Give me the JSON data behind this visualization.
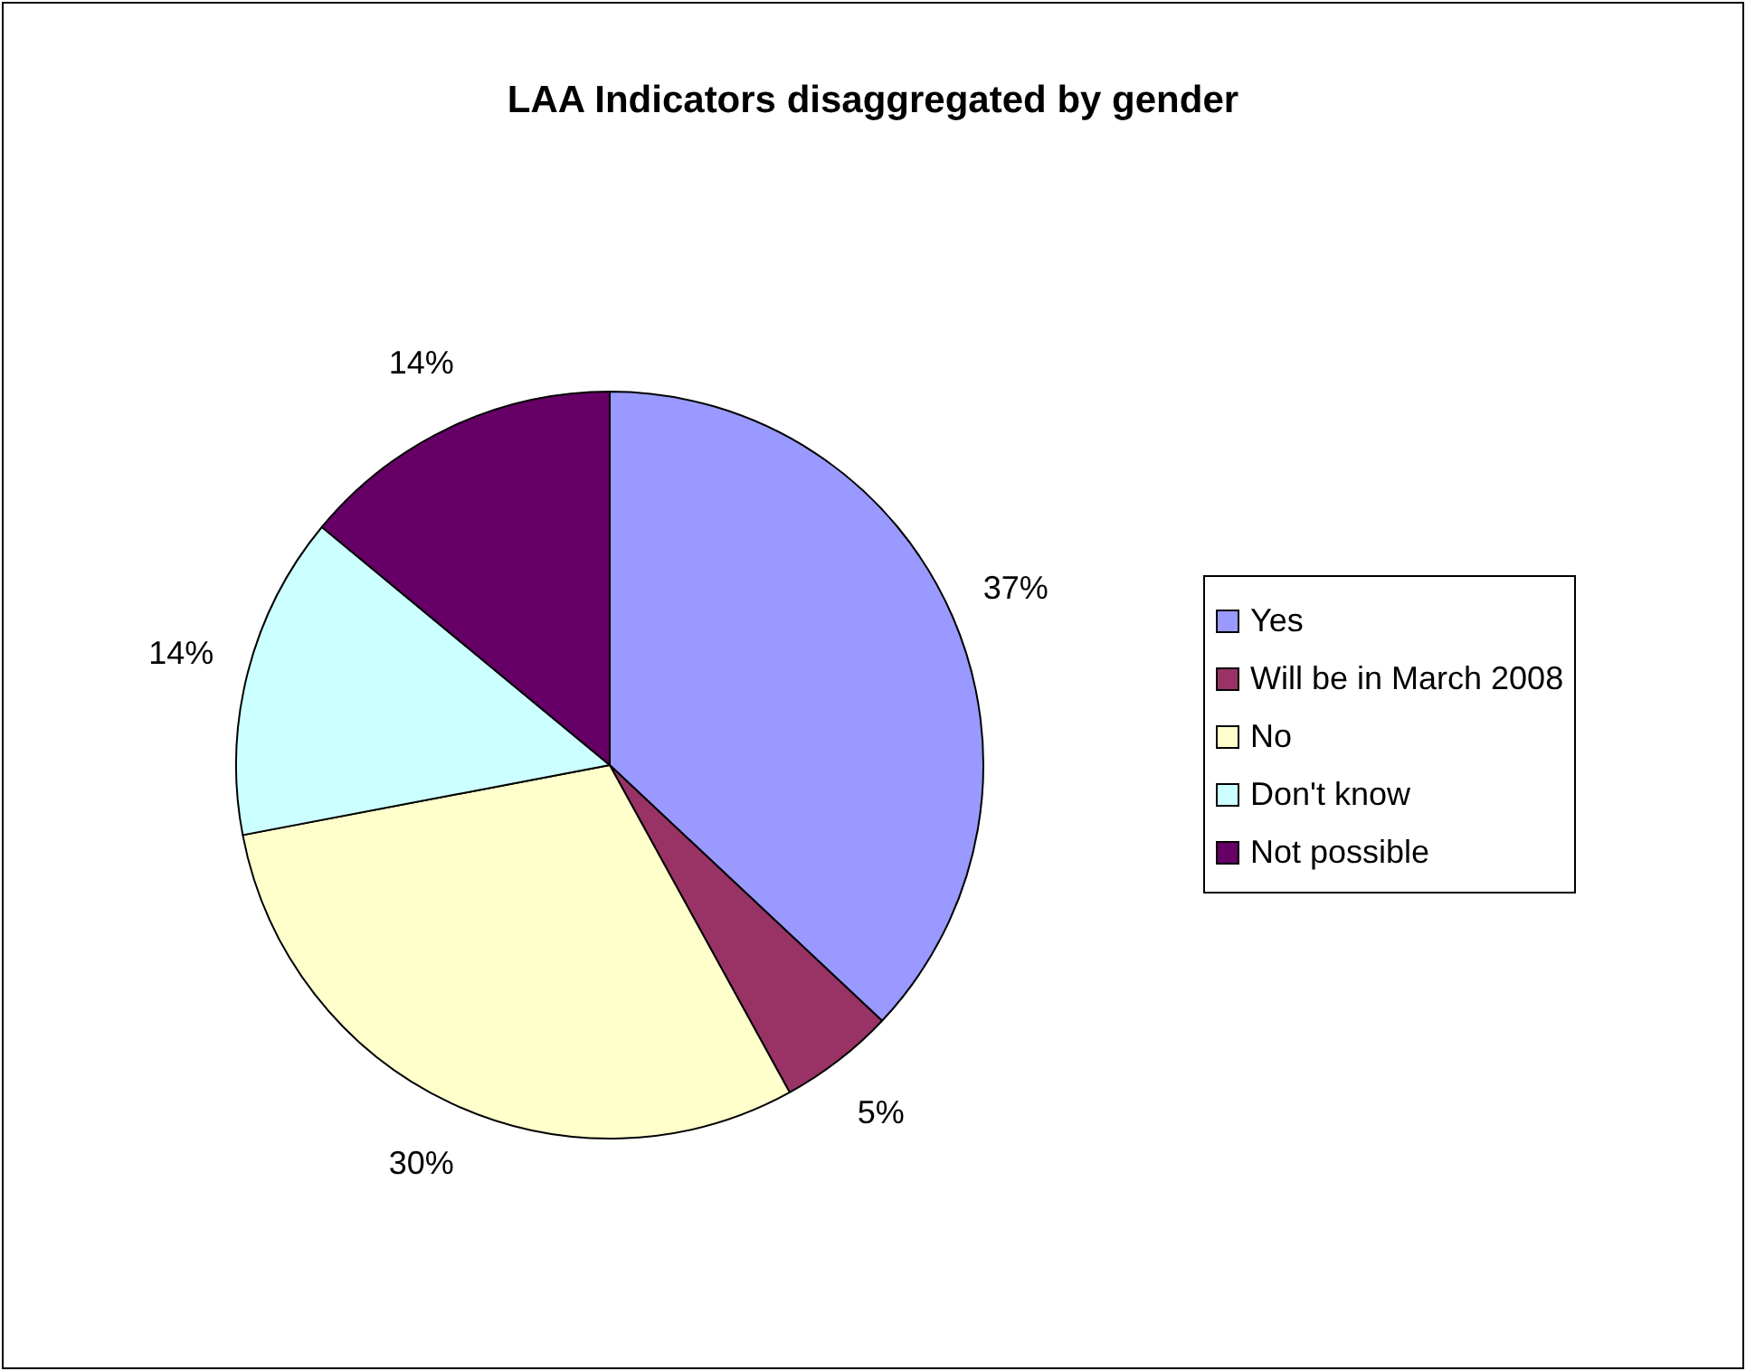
{
  "chart_data": {
    "type": "pie",
    "title": "LAA Indicators disaggregated by gender",
    "categories": [
      "Yes",
      "Will be in March 2008",
      "No",
      "Don't know",
      "Not possible"
    ],
    "values": [
      37,
      5,
      30,
      14,
      14
    ],
    "colors": [
      "#9999ff",
      "#993366",
      "#ffffcc",
      "#ccffff",
      "#660066"
    ],
    "value_labels": [
      "37%",
      "5%",
      "30%",
      "14%",
      "14%"
    ],
    "legend": "right"
  }
}
